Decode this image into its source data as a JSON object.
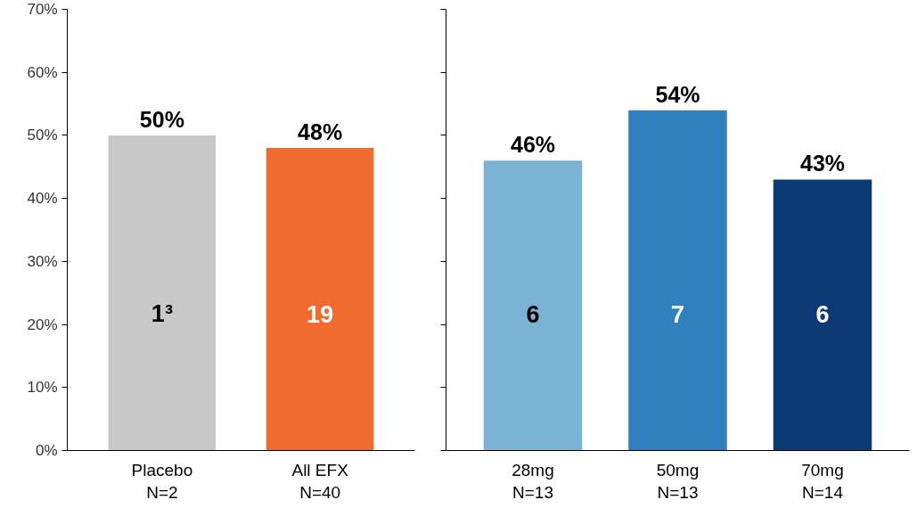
{
  "chart_data": [
    {
      "type": "bar",
      "categories": [
        "Placebo\nN=2",
        "All EFX\nN=40"
      ],
      "colors": [
        "#c8c8c8",
        "#f26b2e"
      ],
      "values": [
        50,
        48
      ],
      "value_labels": [
        "50%",
        "48%"
      ],
      "annotations": [
        "1³",
        "19"
      ],
      "ylim": [
        0,
        70
      ],
      "yticks": [
        {
          "value": 0,
          "label": "0%"
        },
        {
          "value": 10,
          "label": "10%"
        },
        {
          "value": 20,
          "label": "20%"
        },
        {
          "value": 30,
          "label": "30%"
        },
        {
          "value": 40,
          "label": "40%"
        },
        {
          "value": 50,
          "label": "50%"
        },
        {
          "value": 60,
          "label": "60%"
        },
        {
          "value": 70,
          "label": "70%"
        }
      ],
      "grid": false
    },
    {
      "type": "bar",
      "categories": [
        "28mg\nN=13",
        "50mg\nN=13",
        "70mg\nN=14"
      ],
      "colors": [
        "#7ab3d4",
        "#2f80bd",
        "#0b3a75"
      ],
      "values": [
        46,
        54,
        43
      ],
      "value_labels": [
        "46%",
        "54%",
        "43%"
      ],
      "annotations": [
        "6",
        "7",
        "6"
      ],
      "ylim": [
        0,
        70
      ],
      "yticks": [
        {
          "value": 0,
          "label": null
        },
        {
          "value": 10,
          "label": null
        },
        {
          "value": 20,
          "label": null
        },
        {
          "value": 30,
          "label": null
        },
        {
          "value": 40,
          "label": null
        },
        {
          "value": 50,
          "label": null
        },
        {
          "value": 60,
          "label": null
        },
        {
          "value": 70,
          "label": null
        }
      ],
      "tick_labels": "x",
      "grid": false
    }
  ]
}
